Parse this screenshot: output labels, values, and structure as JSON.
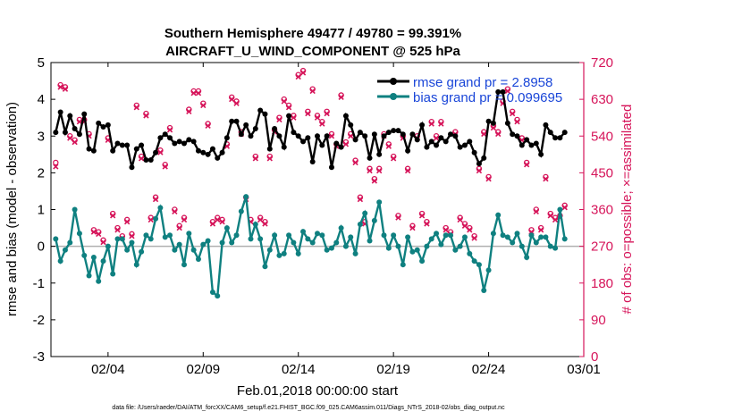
{
  "chart_data": {
    "type": "line",
    "title": "Southern Hemisphere 49477 / 49780 = 99.391%",
    "subtitle": "AIRCRAFT_U_WIND_COMPONENT @ 525 hPa",
    "xlabel": "Feb.01,2018 00:00:00 start",
    "ylabel": "rmse and bias (model - observation)",
    "y2label": "# of obs: o=possible; ×=assimilated",
    "footnote": "data file: /Users/raeder/DAI/ATM_forcXX/CAM6_setup/f.e21.FHIST_BGC.f09_025.CAM6assim.011/Diags_NTrS_2018-02/obs_diag_output.nc",
    "xlim": [
      0,
      28
    ],
    "x_ticks": [
      3,
      8,
      13,
      18,
      23,
      28
    ],
    "x_tick_labels": [
      "02/04",
      "02/09",
      "02/14",
      "02/19",
      "02/24",
      "03/01"
    ],
    "ylim": [
      -3,
      5
    ],
    "y_ticks": [
      -3,
      -2,
      -1,
      0,
      1,
      2,
      3,
      4,
      5
    ],
    "y_tick_labels": [
      "-3",
      "-2",
      "-1",
      "0",
      "1",
      "2",
      "3",
      "4",
      "5"
    ],
    "y2lim": [
      0,
      720
    ],
    "y2_ticks": [
      0,
      90,
      180,
      270,
      360,
      450,
      540,
      630,
      720
    ],
    "y2_tick_labels": [
      "0",
      "90",
      "180",
      "270",
      "360",
      "450",
      "540",
      "630",
      "720"
    ],
    "start_offset": 0.25,
    "step": 0.25,
    "legend": [
      "rmse grand pr = 2.8958",
      "bias grand pr = 0.099695"
    ],
    "series": [
      {
        "name": "rmse",
        "color": "#000000",
        "values": [
          3.1,
          3.65,
          3.1,
          3.55,
          3.2,
          3.05,
          3.6,
          2.65,
          2.6,
          3.35,
          3.25,
          3.3,
          2.6,
          2.8,
          2.75,
          2.75,
          2.15,
          2.65,
          2.75,
          2.35,
          2.35,
          2.55,
          2.95,
          3.05,
          2.95,
          2.8,
          2.85,
          2.8,
          2.9,
          2.85,
          2.6,
          2.55,
          2.5,
          2.65,
          2.4,
          2.55,
          2.95,
          3.4,
          3.4,
          3.05,
          3.3,
          3.0,
          3.2,
          3.7,
          3.6,
          2.65,
          3.2,
          3.0,
          2.7,
          3.55,
          3.1,
          3.0,
          2.85,
          2.95,
          2.3,
          3.0,
          2.75,
          3.0,
          2.15,
          2.8,
          2.7,
          3.55,
          3.3,
          2.9,
          3.1,
          3.0,
          2.4,
          3.05,
          2.5,
          3.0,
          3.1,
          3.15,
          3.15,
          3.05,
          2.6,
          3.05,
          2.9,
          3.3,
          2.7,
          2.85,
          2.75,
          2.95,
          2.85,
          3.05,
          3.0,
          2.7,
          2.75,
          2.85,
          2.55,
          2.25,
          2.4,
          3.4,
          3.35,
          4.2,
          4.2,
          3.35,
          3.05,
          3.0,
          2.75,
          2.9,
          2.75,
          2.8,
          2.5,
          3.3,
          3.1,
          2.95,
          2.95,
          3.1
        ]
      },
      {
        "name": "bias",
        "color": "#0f8080",
        "values": [
          0.2,
          -0.4,
          -0.1,
          0.1,
          1.0,
          0.35,
          -0.25,
          -0.8,
          -0.3,
          -0.95,
          -0.4,
          0.0,
          -0.75,
          0.2,
          0.2,
          -0.1,
          0.1,
          -0.5,
          -0.15,
          0.3,
          0.2,
          0.75,
          1.05,
          0.25,
          0.3,
          -0.1,
          0.05,
          -0.5,
          0.35,
          -0.1,
          -0.35,
          0.05,
          0.15,
          -1.25,
          -1.35,
          0.1,
          0.5,
          0.1,
          0.3,
          0.95,
          1.35,
          0.2,
          0.6,
          0.2,
          -0.55,
          -0.1,
          0.3,
          -0.25,
          -0.2,
          0.3,
          0.1,
          -0.2,
          0.4,
          0.2,
          0.1,
          0.35,
          0.3,
          -0.1,
          -0.05,
          0.1,
          0.5,
          0.0,
          0.25,
          -0.2,
          0.6,
          0.9,
          0.15,
          0.7,
          1.2,
          0.3,
          -0.05,
          0.3,
          0.0,
          -0.5,
          0.25,
          -0.15,
          -0.1,
          -0.4,
          0.0,
          0.2,
          0.35,
          0.05,
          0.3,
          0.3,
          -0.1,
          0.0,
          0.25,
          -0.2,
          -0.4,
          -0.5,
          -1.2,
          -0.65,
          0.35,
          0.85,
          0.3,
          0.25,
          0.1,
          0.35,
          0.0,
          -0.3,
          0.3,
          0.1,
          0.25,
          0.25,
          0.0,
          -0.05,
          1.0,
          0.2
        ]
      }
    ],
    "obs_count": {
      "color": "#d6155a",
      "possible": [
        475,
        665,
        660,
        540,
        530,
        580,
        580,
        545,
        310,
        305,
        285,
        535,
        350,
        315,
        295,
        335,
        300,
        615,
        490,
        595,
        340,
        390,
        505,
        470,
        560,
        360,
        320,
        340,
        605,
        650,
        650,
        620,
        570,
        330,
        340,
        335,
        520,
        635,
        625,
        550,
        390,
        335,
        490,
        340,
        330,
        490,
        555,
        585,
        630,
        615,
        590,
        690,
        700,
        600,
        655,
        590,
        575,
        600,
        545,
        520,
        640,
        525,
        545,
        480,
        390,
        330,
        460,
        435,
        460,
        545,
        520,
        490,
        345,
        540,
        460,
        320,
        540,
        350,
        330,
        575,
        540,
        575,
        315,
        305,
        550,
        340,
        325,
        315,
        295,
        460,
        550,
        440,
        565,
        550,
        625,
        655,
        600,
        580,
        535,
        475,
        310,
        360,
        315,
        440,
        350,
        340,
        345,
        370
      ],
      "assimilated": [
        465,
        660,
        655,
        535,
        525,
        575,
        575,
        540,
        305,
        300,
        280,
        530,
        345,
        310,
        290,
        330,
        295,
        610,
        485,
        590,
        335,
        385,
        500,
        465,
        555,
        355,
        315,
        335,
        600,
        645,
        645,
        615,
        565,
        325,
        335,
        330,
        515,
        630,
        620,
        545,
        385,
        330,
        485,
        335,
        325,
        485,
        550,
        580,
        625,
        610,
        585,
        685,
        695,
        595,
        650,
        585,
        570,
        595,
        540,
        515,
        635,
        520,
        540,
        475,
        385,
        325,
        455,
        430,
        455,
        540,
        515,
        485,
        340,
        535,
        455,
        315,
        535,
        345,
        325,
        570,
        535,
        570,
        310,
        300,
        545,
        335,
        320,
        310,
        290,
        455,
        545,
        435,
        560,
        545,
        620,
        650,
        595,
        575,
        530,
        470,
        305,
        355,
        310,
        435,
        345,
        335,
        340,
        365
      ]
    }
  }
}
